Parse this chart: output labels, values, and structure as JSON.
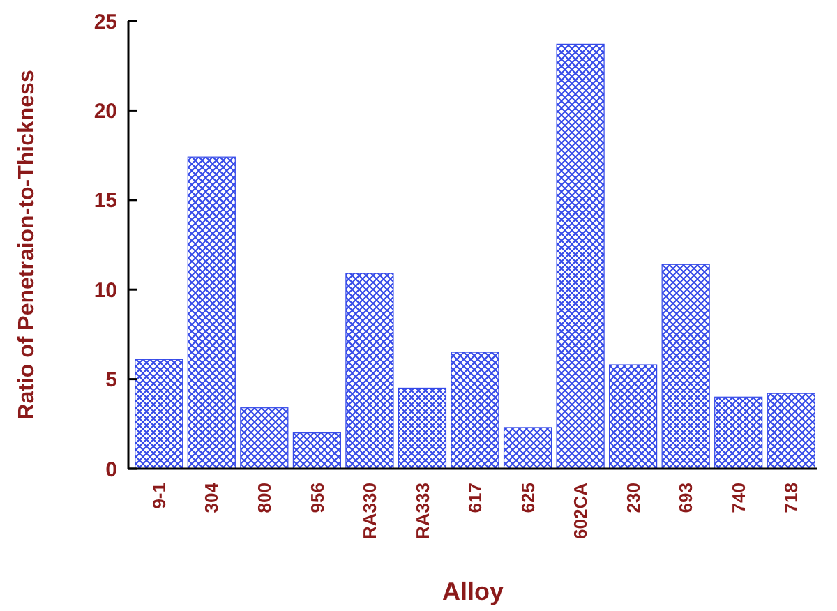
{
  "chart_data": {
    "type": "bar",
    "xlabel": "Alloy",
    "ylabel": "Ratio of Penetraion-to-Thickness",
    "categories": [
      "9-1",
      "304",
      "800",
      "956",
      "RA330",
      "RA333",
      "617",
      "625",
      "602CA",
      "230",
      "693",
      "740",
      "718"
    ],
    "values": [
      6.1,
      17.4,
      3.4,
      2.0,
      10.9,
      4.5,
      6.5,
      2.3,
      23.7,
      5.8,
      11.4,
      4.0,
      4.2
    ],
    "color": "#3348e8",
    "ylim": [
      0,
      25
    ],
    "yticks": [
      0,
      5,
      10,
      15,
      20,
      25
    ],
    "grid": false
  }
}
